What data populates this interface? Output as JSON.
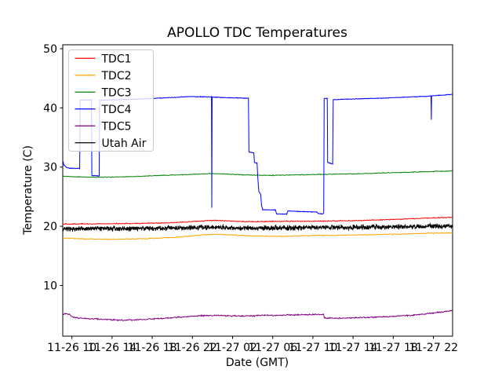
{
  "chart_data": {
    "type": "line",
    "title": "APOLLO TDC Temperatures",
    "xlabel": "Date (GMT)",
    "ylabel": "Temperature (C)",
    "grid": false,
    "legend_position": "upper left",
    "x_unit": "hours since 11-26 00:00 GMT",
    "xlim": [
      9.09,
      47.91
    ],
    "ylim": [
      1.44,
      50.66
    ],
    "yticks": [
      {
        "v": 10,
        "label": "10"
      },
      {
        "v": 20,
        "label": "20"
      },
      {
        "v": 30,
        "label": "30"
      },
      {
        "v": 40,
        "label": "40"
      },
      {
        "v": 50,
        "label": "50"
      }
    ],
    "xticks": [
      {
        "t": 10,
        "label": "11-26 10"
      },
      {
        "t": 14,
        "label": "11-26 14"
      },
      {
        "t": 18,
        "label": "11-26 18"
      },
      {
        "t": 22,
        "label": "11-26 22"
      },
      {
        "t": 26,
        "label": "11-27 02"
      },
      {
        "t": 30,
        "label": "11-27 06"
      },
      {
        "t": 34,
        "label": "11-27 10"
      },
      {
        "t": 38,
        "label": "11-27 14"
      },
      {
        "t": 42,
        "label": "11-27 18"
      },
      {
        "t": 46,
        "label": "11-27 22"
      }
    ],
    "series": [
      {
        "name": "TDC1",
        "color": "#ff0000",
        "noise": 0.09,
        "samples": 620,
        "seed": 11,
        "keypoints": [
          [
            9.0,
            20.38
          ],
          [
            11,
            20.4
          ],
          [
            13,
            20.42
          ],
          [
            15,
            20.45
          ],
          [
            17,
            20.5
          ],
          [
            19,
            20.55
          ],
          [
            21,
            20.7
          ],
          [
            22.5,
            20.85
          ],
          [
            23.5,
            20.95
          ],
          [
            24.2,
            21.0
          ],
          [
            25.5,
            20.9
          ],
          [
            27,
            20.8
          ],
          [
            28.5,
            20.78
          ],
          [
            30,
            20.82
          ],
          [
            32,
            20.85
          ],
          [
            34,
            20.85
          ],
          [
            36,
            20.9
          ],
          [
            38,
            20.95
          ],
          [
            40,
            21.05
          ],
          [
            42,
            21.15
          ],
          [
            44,
            21.3
          ],
          [
            46,
            21.42
          ],
          [
            48,
            21.5
          ]
        ]
      },
      {
        "name": "TDC2",
        "color": "#ffa500",
        "noise": 0.09,
        "samples": 620,
        "seed": 22,
        "keypoints": [
          [
            9.0,
            18.0
          ],
          [
            10,
            17.95
          ],
          [
            12,
            17.85
          ],
          [
            14,
            17.8
          ],
          [
            16,
            17.85
          ],
          [
            18,
            17.95
          ],
          [
            20,
            18.1
          ],
          [
            21.5,
            18.3
          ],
          [
            23,
            18.55
          ],
          [
            24.2,
            18.65
          ],
          [
            25.5,
            18.55
          ],
          [
            27,
            18.45
          ],
          [
            28.5,
            18.35
          ],
          [
            30,
            18.3
          ],
          [
            31.5,
            18.32
          ],
          [
            33,
            18.4
          ],
          [
            35,
            18.45
          ],
          [
            37,
            18.5
          ],
          [
            39,
            18.55
          ],
          [
            41,
            18.62
          ],
          [
            43,
            18.7
          ],
          [
            45,
            18.8
          ],
          [
            46.5,
            18.85
          ],
          [
            48,
            18.92
          ]
        ]
      },
      {
        "name": "TDC3",
        "color": "#008000",
        "noise": 0.07,
        "samples": 620,
        "seed": 33,
        "keypoints": [
          [
            9.0,
            28.45
          ],
          [
            10.5,
            28.35
          ],
          [
            12,
            28.3
          ],
          [
            13.5,
            28.3
          ],
          [
            15,
            28.35
          ],
          [
            17,
            28.45
          ],
          [
            19,
            28.6
          ],
          [
            21,
            28.7
          ],
          [
            22.5,
            28.8
          ],
          [
            24,
            28.9
          ],
          [
            25.5,
            28.8
          ],
          [
            27,
            28.7
          ],
          [
            28.5,
            28.62
          ],
          [
            30,
            28.6
          ],
          [
            31.5,
            28.65
          ],
          [
            33,
            28.7
          ],
          [
            34.5,
            28.75
          ],
          [
            36,
            28.8
          ],
          [
            38,
            28.85
          ],
          [
            40,
            28.95
          ],
          [
            42,
            29.05
          ],
          [
            44,
            29.15
          ],
          [
            46,
            29.25
          ],
          [
            48,
            29.35
          ]
        ]
      },
      {
        "name": "TDC4",
        "color": "#0000ff",
        "noise": 0.06,
        "samples": 1000,
        "seed": 44,
        "keypoints": [
          [
            9.0,
            31.7
          ],
          [
            9.2,
            30.4
          ],
          [
            9.45,
            29.95
          ],
          [
            9.8,
            29.8
          ],
          [
            10.78,
            29.78
          ],
          [
            10.82,
            41.3
          ],
          [
            11.95,
            41.35
          ],
          [
            11.99,
            28.55
          ],
          [
            12.72,
            28.5
          ],
          [
            12.76,
            41.3
          ],
          [
            14,
            41.35
          ],
          [
            16,
            41.45
          ],
          [
            18,
            41.6
          ],
          [
            20,
            41.75
          ],
          [
            21.5,
            41.9
          ],
          [
            22.8,
            41.88
          ],
          [
            23.9,
            41.85
          ],
          [
            23.93,
            23.1
          ],
          [
            23.96,
            41.82
          ],
          [
            25,
            41.75
          ],
          [
            26.5,
            41.68
          ],
          [
            27.58,
            41.62
          ],
          [
            27.63,
            32.55
          ],
          [
            28.12,
            32.4
          ],
          [
            28.18,
            30.75
          ],
          [
            28.44,
            30.65
          ],
          [
            28.52,
            28.0
          ],
          [
            28.62,
            25.9
          ],
          [
            28.8,
            25.4
          ],
          [
            28.88,
            23.6
          ],
          [
            29.0,
            22.8
          ],
          [
            30.28,
            22.75
          ],
          [
            30.38,
            22.1
          ],
          [
            31.4,
            22.05
          ],
          [
            31.5,
            22.6
          ],
          [
            32.5,
            22.5
          ],
          [
            33.5,
            22.45
          ],
          [
            34.4,
            22.4
          ],
          [
            34.52,
            22.15
          ],
          [
            35.0,
            22.1
          ],
          [
            35.08,
            22.3
          ],
          [
            35.12,
            41.6
          ],
          [
            35.43,
            41.6
          ],
          [
            35.47,
            30.8
          ],
          [
            35.97,
            30.5
          ],
          [
            36.02,
            41.4
          ],
          [
            37,
            41.45
          ],
          [
            39,
            41.55
          ],
          [
            41,
            41.65
          ],
          [
            43,
            41.8
          ],
          [
            44.5,
            41.9
          ],
          [
            45.76,
            42.0
          ],
          [
            45.79,
            38.0
          ],
          [
            45.82,
            42.02
          ],
          [
            46.8,
            42.15
          ],
          [
            48,
            42.3
          ]
        ]
      },
      {
        "name": "TDC5",
        "color": "#800080",
        "noise": 0.13,
        "samples": 700,
        "seed": 55,
        "keypoints": [
          [
            9.0,
            5.0
          ],
          [
            9.45,
            5.3
          ],
          [
            9.7,
            5.15
          ],
          [
            10.1,
            4.65
          ],
          [
            10.6,
            4.5
          ],
          [
            11.5,
            4.4
          ],
          [
            12.5,
            4.35
          ],
          [
            14,
            4.2
          ],
          [
            15.5,
            4.15
          ],
          [
            17,
            4.25
          ],
          [
            18.5,
            4.4
          ],
          [
            20,
            4.55
          ],
          [
            21.5,
            4.75
          ],
          [
            23,
            4.9
          ],
          [
            24.2,
            4.95
          ],
          [
            25.5,
            4.88
          ],
          [
            27,
            4.82
          ],
          [
            28.5,
            4.9
          ],
          [
            29.2,
            5.0
          ],
          [
            30,
            4.95
          ],
          [
            31,
            5.0
          ],
          [
            32.5,
            5.05
          ],
          [
            34,
            5.1
          ],
          [
            35.05,
            5.1
          ],
          [
            35.15,
            4.5
          ],
          [
            36.5,
            4.45
          ],
          [
            38,
            4.55
          ],
          [
            39.5,
            4.6
          ],
          [
            41,
            4.7
          ],
          [
            42.5,
            4.85
          ],
          [
            44,
            5.0
          ],
          [
            45.5,
            5.25
          ],
          [
            46.5,
            5.45
          ],
          [
            47.3,
            5.65
          ],
          [
            48,
            5.8
          ]
        ]
      },
      {
        "name": "Utah Air",
        "color": "#000000",
        "noise": 0.5,
        "samples": 1500,
        "seed": 66,
        "keypoints": [
          [
            9.0,
            19.55
          ],
          [
            12,
            19.6
          ],
          [
            15,
            19.6
          ],
          [
            18,
            19.65
          ],
          [
            21,
            19.75
          ],
          [
            23,
            19.8
          ],
          [
            24,
            19.85
          ],
          [
            26,
            19.7
          ],
          [
            28,
            19.7
          ],
          [
            30,
            19.72
          ],
          [
            32,
            19.75
          ],
          [
            34,
            19.78
          ],
          [
            36,
            19.8
          ],
          [
            38,
            19.82
          ],
          [
            40,
            19.85
          ],
          [
            42,
            19.9
          ],
          [
            44,
            19.95
          ],
          [
            46,
            20.0
          ],
          [
            48,
            20.0
          ]
        ]
      }
    ]
  }
}
